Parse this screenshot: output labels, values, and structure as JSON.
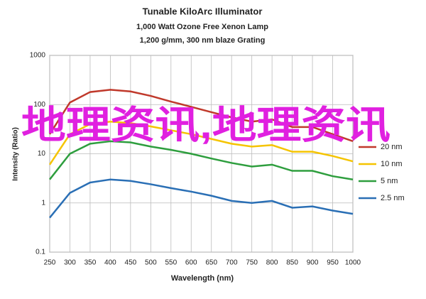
{
  "chart_data": {
    "type": "line",
    "title": "Tunable KiloArc Illuminator",
    "subtitle": [
      "1,000 Watt Ozone Free Xenon Lamp",
      "1,200 g/mm, 300 nm blaze Grating"
    ],
    "x_label": "Wavelength (nm)",
    "y_label": "Intensity (Ratio)",
    "x": [
      250,
      300,
      350,
      400,
      450,
      500,
      550,
      600,
      650,
      700,
      750,
      800,
      850,
      900,
      950,
      1000
    ],
    "series": [
      {
        "name": "20 nm",
        "color": "#c0392b",
        "values": [
          25,
          110,
          180,
          200,
          185,
          150,
          115,
          90,
          70,
          55,
          45,
          50,
          35,
          35,
          25,
          18
        ]
      },
      {
        "name": "10 nm",
        "color": "#f5c400",
        "values": [
          6,
          25,
          40,
          45,
          42,
          36,
          30,
          25,
          20,
          16,
          14,
          15,
          11,
          11,
          9,
          7
        ]
      },
      {
        "name": "5 nm",
        "color": "#2e9e3e",
        "values": [
          3,
          10,
          16,
          18,
          17,
          14,
          12,
          10,
          8,
          6.5,
          5.5,
          6,
          4.5,
          4.5,
          3.5,
          3
        ]
      },
      {
        "name": "2.5 nm",
        "color": "#2a6fb5",
        "values": [
          0.5,
          1.6,
          2.6,
          3.0,
          2.8,
          2.4,
          2.0,
          1.7,
          1.4,
          1.1,
          1.0,
          1.1,
          0.8,
          0.85,
          0.7,
          0.6
        ]
      }
    ],
    "xlim": [
      250,
      1000
    ],
    "xticks": [
      250,
      300,
      350,
      400,
      450,
      500,
      550,
      600,
      650,
      700,
      750,
      800,
      850,
      900,
      950,
      1000
    ],
    "ylim": [
      0.1,
      1000
    ],
    "yticks": [
      0.1,
      1,
      10,
      100,
      1000
    ],
    "log_y": true,
    "grid": true,
    "legend": "right",
    "overlay_text": "地理资讯,地理资讯",
    "overlay_color": "#e020e0"
  }
}
